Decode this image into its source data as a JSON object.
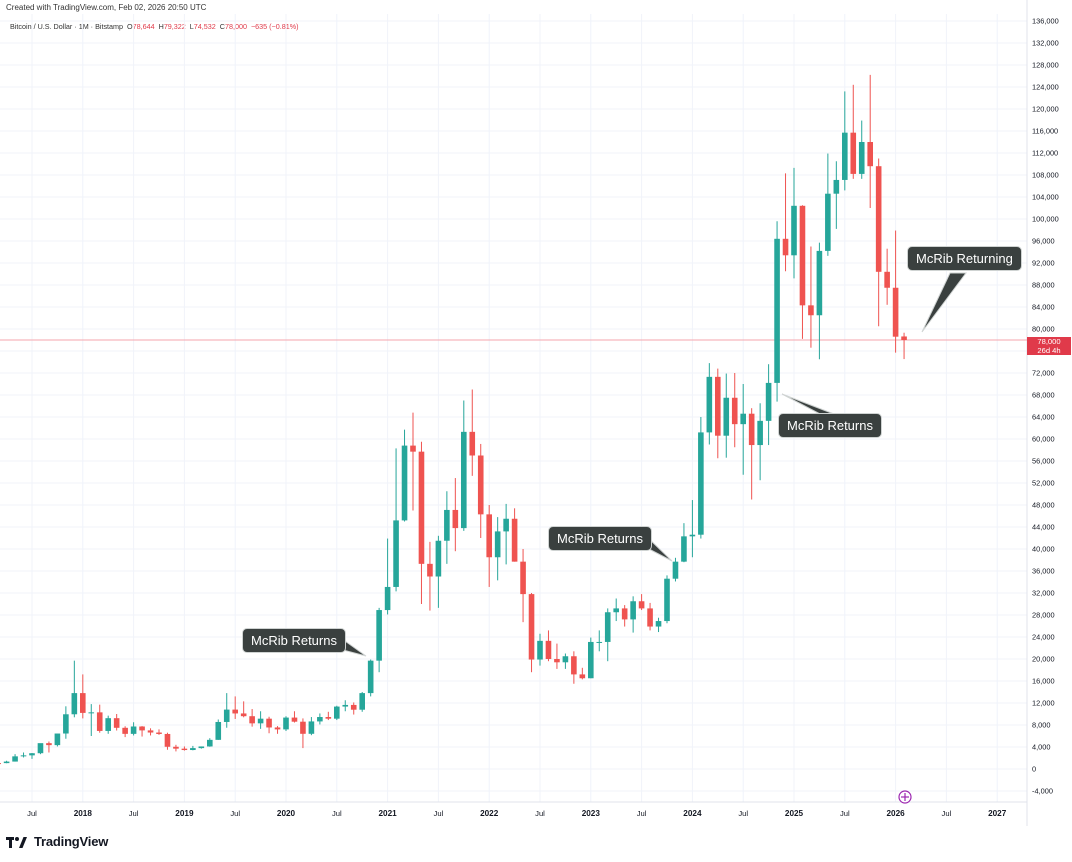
{
  "header": {
    "credit": "Created with TradingView.com, Feb 02, 2026 20:50 UTC"
  },
  "legend": {
    "symbol": "Bitcoin / U.S. Dollar · 1M · Bitstamp",
    "o_label": "O",
    "o_value": "78,644",
    "h_label": "H",
    "h_value": "79,322",
    "l_label": "L",
    "l_value": "74,532",
    "c_label": "C",
    "c_value": "78,000",
    "change": "−635 (−0.81%)"
  },
  "price_tag": {
    "price": "78,000",
    "countdown": "26d 4h"
  },
  "annotations": [
    {
      "text": "McRib Returns"
    },
    {
      "text": "McRib Returns"
    },
    {
      "text": "McRib Returns"
    },
    {
      "text": "McRib Returning"
    }
  ],
  "footer": {
    "brand": "TradingView"
  },
  "colors": {
    "up": "#26a69a",
    "down": "#ef5350",
    "grid": "#f0f3fa",
    "axis_text": "#131722",
    "callout_bg": "#3a403f"
  },
  "chart_data": {
    "type": "candlestick",
    "title": "",
    "xlabel": "",
    "ylabel": "",
    "ylim": [
      -6000,
      137000
    ],
    "y_ticks": [
      "-4,000",
      "0",
      "4,000",
      "8,000",
      "12,000",
      "16,000",
      "20,000",
      "24,000",
      "28,000",
      "32,000",
      "36,000",
      "40,000",
      "44,000",
      "48,000",
      "52,000",
      "56,000",
      "60,000",
      "64,000",
      "68,000",
      "72,000",
      "76,000",
      "80,000",
      "84,000",
      "88,000",
      "92,000",
      "96,000",
      "100,000",
      "104,000",
      "108,000",
      "112,000",
      "116,000",
      "120,000",
      "124,000",
      "128,000",
      "132,000",
      "136,000"
    ],
    "x_ticks": [
      {
        "label": "Jul",
        "date": "2017-07"
      },
      {
        "label": "2018",
        "date": "2018-01"
      },
      {
        "label": "Jul",
        "date": "2018-07"
      },
      {
        "label": "2019",
        "date": "2019-01"
      },
      {
        "label": "Jul",
        "date": "2019-07"
      },
      {
        "label": "2020",
        "date": "2020-01"
      },
      {
        "label": "Jul",
        "date": "2020-07"
      },
      {
        "label": "2021",
        "date": "2021-01"
      },
      {
        "label": "Jul",
        "date": "2021-07"
      },
      {
        "label": "2022",
        "date": "2022-01"
      },
      {
        "label": "Jul",
        "date": "2022-07"
      },
      {
        "label": "2023",
        "date": "2023-01"
      },
      {
        "label": "Jul",
        "date": "2023-07"
      },
      {
        "label": "2024",
        "date": "2024-01"
      },
      {
        "label": "Jul",
        "date": "2024-07"
      },
      {
        "label": "2025",
        "date": "2025-01"
      },
      {
        "label": "Jul",
        "date": "2025-07"
      },
      {
        "label": "2026",
        "date": "2026-01"
      },
      {
        "label": "Jul",
        "date": "2026-07"
      },
      {
        "label": "2027",
        "date": "2027-01"
      }
    ],
    "last_price": 78000,
    "candles": [
      {
        "d": "2017-03",
        "o": 1080,
        "h": 1300,
        "l": 900,
        "c": 1070
      },
      {
        "d": "2017-04",
        "o": 1070,
        "h": 1500,
        "l": 1050,
        "c": 1350
      },
      {
        "d": "2017-05",
        "o": 1350,
        "h": 2700,
        "l": 1350,
        "c": 2300
      },
      {
        "d": "2017-06",
        "o": 2300,
        "h": 3000,
        "l": 2100,
        "c": 2480
      },
      {
        "d": "2017-07",
        "o": 2480,
        "h": 2900,
        "l": 1850,
        "c": 2870
      },
      {
        "d": "2017-08",
        "o": 2870,
        "h": 4500,
        "l": 2700,
        "c": 4700
      },
      {
        "d": "2017-09",
        "o": 4700,
        "h": 5000,
        "l": 3000,
        "c": 4340
      },
      {
        "d": "2017-10",
        "o": 4340,
        "h": 6400,
        "l": 4100,
        "c": 6450
      },
      {
        "d": "2017-11",
        "o": 6450,
        "h": 11400,
        "l": 5500,
        "c": 9950
      },
      {
        "d": "2017-12",
        "o": 9950,
        "h": 19700,
        "l": 9400,
        "c": 13800
      },
      {
        "d": "2018-01",
        "o": 13800,
        "h": 17200,
        "l": 9200,
        "c": 10200
      },
      {
        "d": "2018-02",
        "o": 10200,
        "h": 11800,
        "l": 6000,
        "c": 10300
      },
      {
        "d": "2018-03",
        "o": 10300,
        "h": 11700,
        "l": 6600,
        "c": 6920
      },
      {
        "d": "2018-04",
        "o": 6920,
        "h": 9700,
        "l": 6400,
        "c": 9240
      },
      {
        "d": "2018-05",
        "o": 9240,
        "h": 10000,
        "l": 7000,
        "c": 7490
      },
      {
        "d": "2018-06",
        "o": 7490,
        "h": 7770,
        "l": 5800,
        "c": 6390
      },
      {
        "d": "2018-07",
        "o": 6390,
        "h": 8500,
        "l": 6100,
        "c": 7730
      },
      {
        "d": "2018-08",
        "o": 7730,
        "h": 7800,
        "l": 5900,
        "c": 7020
      },
      {
        "d": "2018-09",
        "o": 7020,
        "h": 7400,
        "l": 6100,
        "c": 6630
      },
      {
        "d": "2018-10",
        "o": 6630,
        "h": 7200,
        "l": 6200,
        "c": 6370
      },
      {
        "d": "2018-11",
        "o": 6370,
        "h": 6600,
        "l": 3500,
        "c": 4040
      },
      {
        "d": "2018-12",
        "o": 4040,
        "h": 4400,
        "l": 3200,
        "c": 3700
      },
      {
        "d": "2019-01",
        "o": 3700,
        "h": 4100,
        "l": 3350,
        "c": 3450
      },
      {
        "d": "2019-02",
        "o": 3450,
        "h": 4200,
        "l": 3400,
        "c": 3800
      },
      {
        "d": "2019-03",
        "o": 3800,
        "h": 4100,
        "l": 3700,
        "c": 4100
      },
      {
        "d": "2019-04",
        "o": 4100,
        "h": 5600,
        "l": 4050,
        "c": 5300
      },
      {
        "d": "2019-05",
        "o": 5300,
        "h": 9000,
        "l": 5300,
        "c": 8550
      },
      {
        "d": "2019-06",
        "o": 8550,
        "h": 13800,
        "l": 7500,
        "c": 10800
      },
      {
        "d": "2019-07",
        "o": 10800,
        "h": 13200,
        "l": 9100,
        "c": 10100
      },
      {
        "d": "2019-08",
        "o": 10100,
        "h": 12300,
        "l": 9400,
        "c": 9600
      },
      {
        "d": "2019-09",
        "o": 9600,
        "h": 10900,
        "l": 7700,
        "c": 8300
      },
      {
        "d": "2019-10",
        "o": 8300,
        "h": 10500,
        "l": 7300,
        "c": 9150
      },
      {
        "d": "2019-11",
        "o": 9150,
        "h": 9500,
        "l": 6500,
        "c": 7550
      },
      {
        "d": "2019-12",
        "o": 7550,
        "h": 7800,
        "l": 6400,
        "c": 7200
      },
      {
        "d": "2020-01",
        "o": 7200,
        "h": 9600,
        "l": 6900,
        "c": 9350
      },
      {
        "d": "2020-02",
        "o": 9350,
        "h": 10500,
        "l": 8450,
        "c": 8600
      },
      {
        "d": "2020-03",
        "o": 8600,
        "h": 9200,
        "l": 3800,
        "c": 6400
      },
      {
        "d": "2020-04",
        "o": 6400,
        "h": 9450,
        "l": 6150,
        "c": 8650
      },
      {
        "d": "2020-05",
        "o": 8650,
        "h": 10100,
        "l": 8100,
        "c": 9450
      },
      {
        "d": "2020-06",
        "o": 9450,
        "h": 10400,
        "l": 8900,
        "c": 9150
      },
      {
        "d": "2020-07",
        "o": 9150,
        "h": 11500,
        "l": 8900,
        "c": 11350
      },
      {
        "d": "2020-08",
        "o": 11350,
        "h": 12500,
        "l": 10500,
        "c": 11650
      },
      {
        "d": "2020-09",
        "o": 11650,
        "h": 12100,
        "l": 9900,
        "c": 10780
      },
      {
        "d": "2020-10",
        "o": 10780,
        "h": 14000,
        "l": 10400,
        "c": 13800
      },
      {
        "d": "2020-11",
        "o": 13800,
        "h": 19900,
        "l": 13200,
        "c": 19700
      },
      {
        "d": "2020-12",
        "o": 19700,
        "h": 29300,
        "l": 17600,
        "c": 28900
      },
      {
        "d": "2021-01",
        "o": 28900,
        "h": 41900,
        "l": 28100,
        "c": 33100
      },
      {
        "d": "2021-02",
        "o": 33100,
        "h": 58300,
        "l": 32300,
        "c": 45200
      },
      {
        "d": "2021-03",
        "o": 45200,
        "h": 61700,
        "l": 45000,
        "c": 58800
      },
      {
        "d": "2021-04",
        "o": 58800,
        "h": 64800,
        "l": 47000,
        "c": 57700
      },
      {
        "d": "2021-05",
        "o": 57700,
        "h": 59500,
        "l": 30000,
        "c": 37300
      },
      {
        "d": "2021-06",
        "o": 37300,
        "h": 41300,
        "l": 28800,
        "c": 35000
      },
      {
        "d": "2021-07",
        "o": 35000,
        "h": 42400,
        "l": 29300,
        "c": 41500
      },
      {
        "d": "2021-08",
        "o": 41500,
        "h": 50500,
        "l": 37300,
        "c": 47100
      },
      {
        "d": "2021-09",
        "o": 47100,
        "h": 52900,
        "l": 39600,
        "c": 43800
      },
      {
        "d": "2021-10",
        "o": 43800,
        "h": 67000,
        "l": 43300,
        "c": 61300
      },
      {
        "d": "2021-11",
        "o": 61300,
        "h": 69000,
        "l": 53300,
        "c": 57000
      },
      {
        "d": "2021-12",
        "o": 57000,
        "h": 59100,
        "l": 42000,
        "c": 46300
      },
      {
        "d": "2022-01",
        "o": 46300,
        "h": 48000,
        "l": 33100,
        "c": 38500
      },
      {
        "d": "2022-02",
        "o": 38500,
        "h": 45800,
        "l": 34300,
        "c": 43200
      },
      {
        "d": "2022-03",
        "o": 43200,
        "h": 48200,
        "l": 37200,
        "c": 45500
      },
      {
        "d": "2022-04",
        "o": 45500,
        "h": 47400,
        "l": 37700,
        "c": 37700
      },
      {
        "d": "2022-05",
        "o": 37700,
        "h": 40000,
        "l": 26700,
        "c": 31800
      },
      {
        "d": "2022-06",
        "o": 31800,
        "h": 32000,
        "l": 17600,
        "c": 19900
      },
      {
        "d": "2022-07",
        "o": 19900,
        "h": 24600,
        "l": 18800,
        "c": 23300
      },
      {
        "d": "2022-08",
        "o": 23300,
        "h": 25200,
        "l": 19600,
        "c": 20000
      },
      {
        "d": "2022-09",
        "o": 20000,
        "h": 22800,
        "l": 18200,
        "c": 19400
      },
      {
        "d": "2022-10",
        "o": 19400,
        "h": 21000,
        "l": 18200,
        "c": 20500
      },
      {
        "d": "2022-11",
        "o": 20500,
        "h": 21400,
        "l": 15500,
        "c": 17200
      },
      {
        "d": "2022-12",
        "o": 17200,
        "h": 18400,
        "l": 16300,
        "c": 16500
      },
      {
        "d": "2023-01",
        "o": 16500,
        "h": 23900,
        "l": 16500,
        "c": 23100
      },
      {
        "d": "2023-02",
        "o": 23100,
        "h": 25200,
        "l": 21400,
        "c": 23100
      },
      {
        "d": "2023-03",
        "o": 23100,
        "h": 29200,
        "l": 19600,
        "c": 28500
      },
      {
        "d": "2023-04",
        "o": 28500,
        "h": 31000,
        "l": 26900,
        "c": 29200
      },
      {
        "d": "2023-05",
        "o": 29200,
        "h": 29800,
        "l": 25900,
        "c": 27200
      },
      {
        "d": "2023-06",
        "o": 27200,
        "h": 31400,
        "l": 24800,
        "c": 30500
      },
      {
        "d": "2023-07",
        "o": 30500,
        "h": 31800,
        "l": 28900,
        "c": 29200
      },
      {
        "d": "2023-08",
        "o": 29200,
        "h": 30200,
        "l": 25200,
        "c": 25900
      },
      {
        "d": "2023-09",
        "o": 25900,
        "h": 27500,
        "l": 24900,
        "c": 26900
      },
      {
        "d": "2023-10",
        "o": 26900,
        "h": 35200,
        "l": 26500,
        "c": 34600
      },
      {
        "d": "2023-11",
        "o": 34600,
        "h": 38400,
        "l": 34100,
        "c": 37700
      },
      {
        "d": "2023-12",
        "o": 37700,
        "h": 44700,
        "l": 37600,
        "c": 42300
      },
      {
        "d": "2024-01",
        "o": 42300,
        "h": 48900,
        "l": 38500,
        "c": 42600
      },
      {
        "d": "2024-02",
        "o": 42600,
        "h": 64000,
        "l": 41900,
        "c": 61200
      },
      {
        "d": "2024-03",
        "o": 61200,
        "h": 73800,
        "l": 59000,
        "c": 71300
      },
      {
        "d": "2024-04",
        "o": 71300,
        "h": 72800,
        "l": 56500,
        "c": 60600
      },
      {
        "d": "2024-05",
        "o": 60600,
        "h": 71900,
        "l": 56600,
        "c": 67500
      },
      {
        "d": "2024-06",
        "o": 67500,
        "h": 72000,
        "l": 58500,
        "c": 62700
      },
      {
        "d": "2024-07",
        "o": 62700,
        "h": 70000,
        "l": 53500,
        "c": 64600
      },
      {
        "d": "2024-08",
        "o": 64600,
        "h": 65600,
        "l": 49000,
        "c": 58900
      },
      {
        "d": "2024-09",
        "o": 58900,
        "h": 66500,
        "l": 52500,
        "c": 63300
      },
      {
        "d": "2024-10",
        "o": 63300,
        "h": 73600,
        "l": 58900,
        "c": 70200
      },
      {
        "d": "2024-11",
        "o": 70200,
        "h": 99600,
        "l": 66800,
        "c": 96400
      },
      {
        "d": "2024-12",
        "o": 96400,
        "h": 108300,
        "l": 90500,
        "c": 93400
      },
      {
        "d": "2025-01",
        "o": 93400,
        "h": 109300,
        "l": 89200,
        "c": 102400
      },
      {
        "d": "2025-02",
        "o": 102400,
        "h": 102500,
        "l": 78200,
        "c": 84300
      },
      {
        "d": "2025-03",
        "o": 84300,
        "h": 95000,
        "l": 76600,
        "c": 82500
      },
      {
        "d": "2025-04",
        "o": 82500,
        "h": 95700,
        "l": 74500,
        "c": 94200
      },
      {
        "d": "2025-05",
        "o": 94200,
        "h": 111900,
        "l": 93300,
        "c": 104600
      },
      {
        "d": "2025-06",
        "o": 104600,
        "h": 110500,
        "l": 98200,
        "c": 107100
      },
      {
        "d": "2025-07",
        "o": 107100,
        "h": 123200,
        "l": 105200,
        "c": 115700
      },
      {
        "d": "2025-08",
        "o": 115700,
        "h": 124400,
        "l": 107300,
        "c": 108200
      },
      {
        "d": "2025-09",
        "o": 108200,
        "h": 117900,
        "l": 107300,
        "c": 114000
      },
      {
        "d": "2025-10",
        "o": 114000,
        "h": 126200,
        "l": 102000,
        "c": 109600
      },
      {
        "d": "2025-11",
        "o": 109600,
        "h": 111000,
        "l": 80500,
        "c": 90400
      },
      {
        "d": "2025-12",
        "o": 90400,
        "h": 94600,
        "l": 84400,
        "c": 87500
      },
      {
        "d": "2026-01",
        "o": 87500,
        "h": 97900,
        "l": 75700,
        "c": 78600
      },
      {
        "d": "2026-02",
        "o": 78644,
        "h": 79322,
        "l": 74532,
        "c": 78000
      }
    ]
  }
}
